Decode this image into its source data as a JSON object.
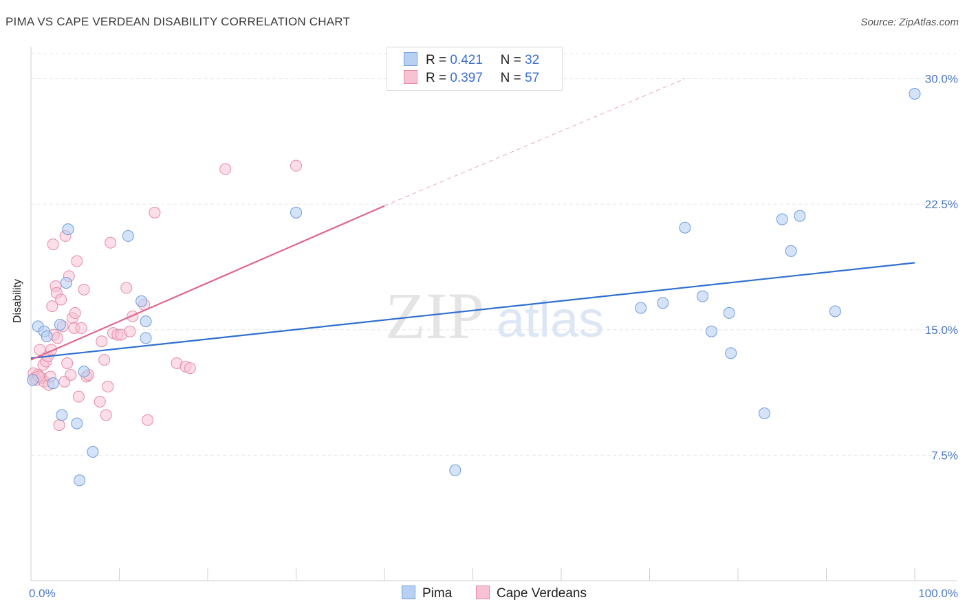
{
  "header": {
    "title": "PIMA VS CAPE VERDEAN DISABILITY CORRELATION CHART",
    "source": "Source: ZipAtlas.com"
  },
  "watermark": {
    "zip": "ZIP",
    "atlas": "atlas"
  },
  "legend": {
    "rows": [
      {
        "r_label": "R =",
        "r_value": "0.421",
        "n_label": "N =",
        "n_value": "32"
      },
      {
        "r_label": "R =",
        "r_value": "0.397",
        "n_label": "N =",
        "n_value": "57"
      }
    ]
  },
  "bottom_legend": [
    "Pima",
    "Cape Verdeans"
  ],
  "colors": {
    "pima_fill": "#b8d1f3",
    "pima_stroke": "#6e9bdc",
    "pima_line": "#2f6fd0",
    "cv_fill": "#f7c3d3",
    "cv_stroke": "#e58aa8",
    "cv_line": "#e0668f",
    "tick_text": "#4a78c2"
  },
  "chart_data": {
    "type": "scatter",
    "title": "PIMA VS CAPE VERDEAN DISABILITY CORRELATION CHART",
    "xlabel": "",
    "ylabel": "Disability",
    "xlim": [
      0,
      100
    ],
    "ylim": [
      0,
      31.5
    ],
    "x_tick_labels": [
      "0.0%",
      "100.0%"
    ],
    "y_ticks": [
      7.5,
      15.0,
      22.5,
      30.0
    ],
    "y_tick_labels": [
      "7.5%",
      "15.0%",
      "22.5%",
      "30.0%"
    ],
    "grid": true,
    "series": [
      {
        "name": "Pima",
        "r": 0.421,
        "n": 32,
        "trend": {
          "x": [
            0,
            100
          ],
          "y": [
            13.3,
            19.0
          ],
          "dashed_from": null
        },
        "points": [
          [
            0.8,
            15.2
          ],
          [
            1.5,
            14.9
          ],
          [
            1.8,
            14.6
          ],
          [
            2.5,
            11.8
          ],
          [
            3.3,
            15.3
          ],
          [
            3.5,
            9.9
          ],
          [
            4.0,
            17.8
          ],
          [
            4.2,
            21.0
          ],
          [
            5.2,
            9.4
          ],
          [
            5.5,
            6.0
          ],
          [
            6.0,
            12.5
          ],
          [
            7.0,
            7.7
          ],
          [
            11.0,
            20.6
          ],
          [
            12.5,
            16.7
          ],
          [
            13.0,
            15.5
          ],
          [
            13.0,
            14.5
          ],
          [
            30.0,
            22.0
          ],
          [
            48.0,
            6.6
          ],
          [
            69.0,
            16.3
          ],
          [
            71.5,
            16.6
          ],
          [
            74.0,
            21.1
          ],
          [
            76.0,
            17.0
          ],
          [
            77.0,
            14.9
          ],
          [
            79.0,
            16.0
          ],
          [
            79.2,
            13.6
          ],
          [
            83.0,
            10.0
          ],
          [
            85.0,
            21.6
          ],
          [
            86.0,
            19.7
          ],
          [
            87.0,
            21.8
          ],
          [
            91.0,
            16.1
          ],
          [
            100.0,
            29.1
          ],
          [
            0.2,
            12.0
          ]
        ]
      },
      {
        "name": "Cape Verdeans",
        "r": 0.397,
        "n": 57,
        "trend": {
          "x": [
            0,
            40,
            74
          ],
          "y": [
            13.2,
            22.4,
            30.0
          ],
          "dashed_from": 40
        },
        "points": [
          [
            0.3,
            12.4
          ],
          [
            0.4,
            12.1
          ],
          [
            0.6,
            12.0
          ],
          [
            0.8,
            12.3
          ],
          [
            1.0,
            13.8
          ],
          [
            1.2,
            12.1
          ],
          [
            1.4,
            12.9
          ],
          [
            1.5,
            11.9
          ],
          [
            1.7,
            13.1
          ],
          [
            1.9,
            13.4
          ],
          [
            2.0,
            11.7
          ],
          [
            2.2,
            12.2
          ],
          [
            2.3,
            13.8
          ],
          [
            2.4,
            16.4
          ],
          [
            2.5,
            20.1
          ],
          [
            2.6,
            14.7
          ],
          [
            2.8,
            17.6
          ],
          [
            2.9,
            17.2
          ],
          [
            3.0,
            14.5
          ],
          [
            3.2,
            9.3
          ],
          [
            3.4,
            16.8
          ],
          [
            3.6,
            15.2
          ],
          [
            3.8,
            11.9
          ],
          [
            3.9,
            20.6
          ],
          [
            4.1,
            13.0
          ],
          [
            4.3,
            18.2
          ],
          [
            4.5,
            12.3
          ],
          [
            4.7,
            15.7
          ],
          [
            4.9,
            15.1
          ],
          [
            5.0,
            16.0
          ],
          [
            5.2,
            19.1
          ],
          [
            5.4,
            11.0
          ],
          [
            5.7,
            15.1
          ],
          [
            6.0,
            17.4
          ],
          [
            6.3,
            12.2
          ],
          [
            6.5,
            12.3
          ],
          [
            7.8,
            10.7
          ],
          [
            8.0,
            14.3
          ],
          [
            8.3,
            13.2
          ],
          [
            8.5,
            9.9
          ],
          [
            8.7,
            11.6
          ],
          [
            9.0,
            20.2
          ],
          [
            9.3,
            14.8
          ],
          [
            9.8,
            14.7
          ],
          [
            10.2,
            14.7
          ],
          [
            10.8,
            17.5
          ],
          [
            11.2,
            14.9
          ],
          [
            11.5,
            15.8
          ],
          [
            12.8,
            16.5
          ],
          [
            13.2,
            9.6
          ],
          [
            14.0,
            22.0
          ],
          [
            16.5,
            13.0
          ],
          [
            17.5,
            12.8
          ],
          [
            18.0,
            12.7
          ],
          [
            22.0,
            24.6
          ],
          [
            30.0,
            24.8
          ],
          [
            0.9,
            12.2
          ]
        ]
      }
    ]
  }
}
